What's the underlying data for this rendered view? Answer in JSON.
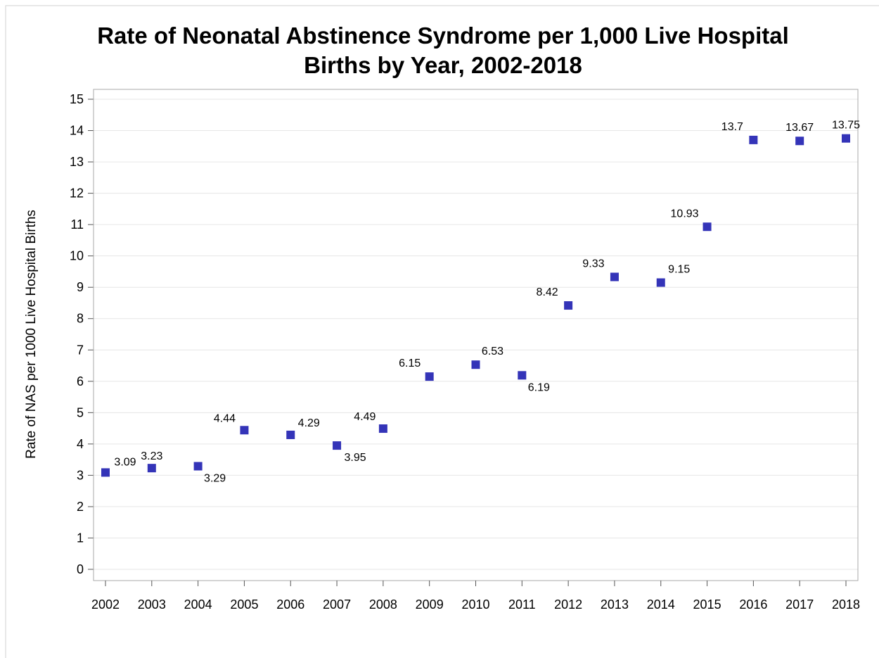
{
  "chart_data": {
    "type": "line",
    "title": [
      "Rate of Neonatal Abstinence Syndrome per 1,000 Live Hospital",
      "Births by Year, 2002-2018"
    ],
    "y_label": "Rate of NAS per 1000 Live Hospital Births",
    "categories": [
      "2002",
      "2003",
      "2004",
      "2005",
      "2006",
      "2007",
      "2008",
      "2009",
      "2010",
      "2011",
      "2012",
      "2013",
      "2014",
      "2015",
      "2016",
      "2017",
      "2018"
    ],
    "series": [
      {
        "name": "Rate",
        "color": "#3434b8",
        "values": [
          3.09,
          3.23,
          3.29,
          4.44,
          4.29,
          3.95,
          4.49,
          6.15,
          6.53,
          6.19,
          8.42,
          9.33,
          9.15,
          10.93,
          13.7,
          13.67,
          13.75
        ]
      }
    ],
    "ylim": [
      0,
      15
    ],
    "yticks": [
      0,
      1,
      2,
      3,
      4,
      5,
      6,
      7,
      8,
      9,
      10,
      11,
      12,
      13,
      14,
      15
    ],
    "grid": true
  }
}
